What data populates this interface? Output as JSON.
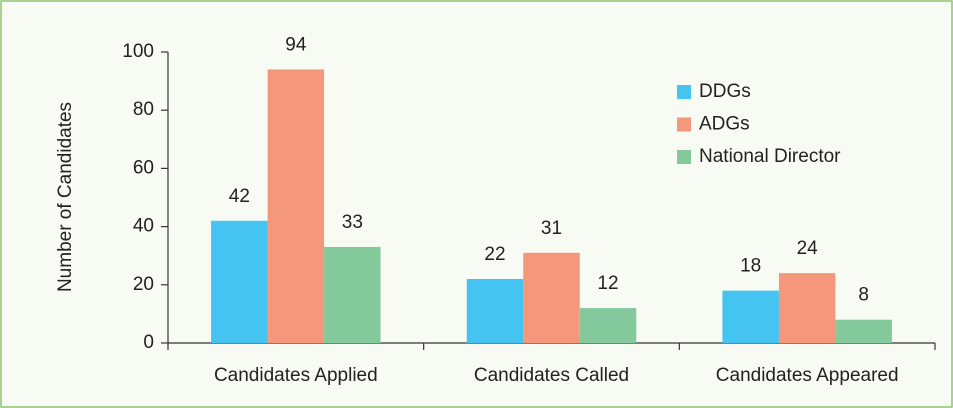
{
  "chart_data": {
    "type": "bar",
    "y_label": "Number of Candidates",
    "categories": [
      "Candidates Applied",
      "Candidates Called",
      "Candidates Appeared"
    ],
    "series": [
      {
        "name": "DDGs",
        "color": "#45c4f2",
        "values": [
          42,
          22,
          18
        ]
      },
      {
        "name": "ADGs",
        "color": "#f4977a",
        "values": [
          94,
          31,
          24
        ]
      },
      {
        "name": "National Director",
        "color": "#84c99c",
        "values": [
          33,
          12,
          8
        ]
      }
    ],
    "ylim": [
      0,
      100
    ],
    "yticks": [
      0,
      20,
      40,
      60,
      80,
      100
    ],
    "legend": "upper right"
  }
}
